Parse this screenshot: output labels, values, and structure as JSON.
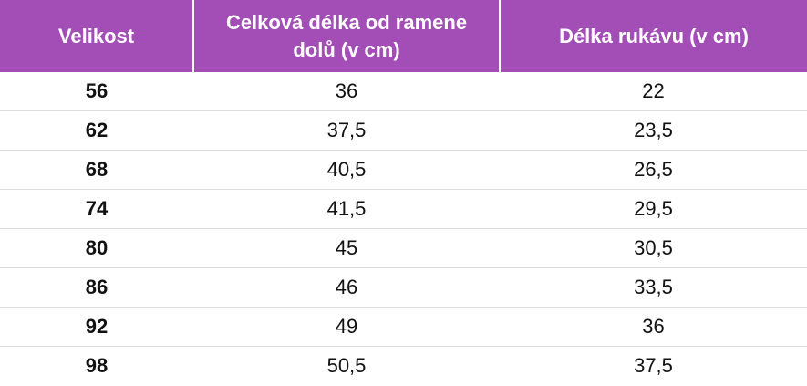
{
  "table": {
    "header": [
      "Velikost",
      "Celková délka od ramene dolů (v cm)",
      "Délka rukávu (v cm)"
    ],
    "rows": [
      [
        "56",
        "36",
        "22"
      ],
      [
        "62",
        "37,5",
        "23,5"
      ],
      [
        "68",
        "40,5",
        "26,5"
      ],
      [
        "74",
        "41,5",
        "29,5"
      ],
      [
        "80",
        "45",
        "30,5"
      ],
      [
        "86",
        "46",
        "33,5"
      ],
      [
        "92",
        "49",
        "36"
      ],
      [
        "98",
        "50,5",
        "37,5"
      ]
    ]
  }
}
